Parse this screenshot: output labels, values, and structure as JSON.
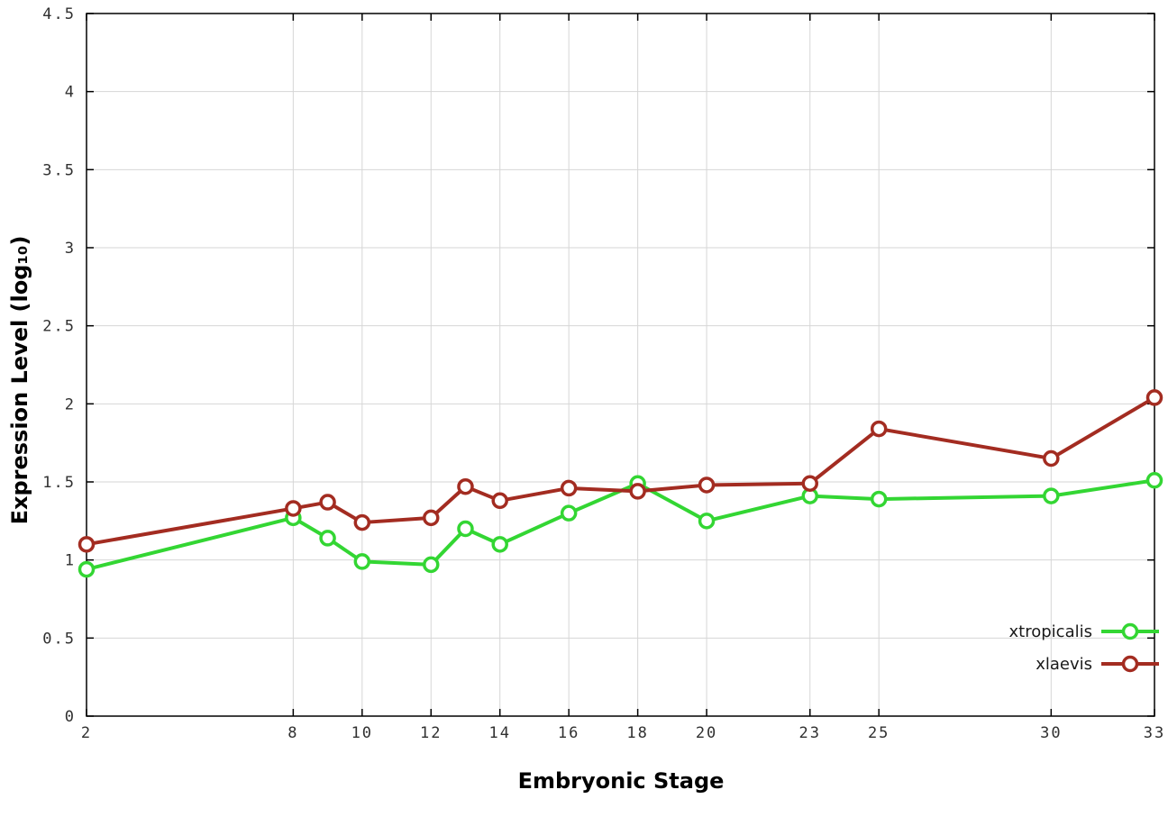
{
  "chart_data": {
    "type": "line",
    "title": "",
    "xlabel": "Embryonic Stage",
    "ylabel": "Expression Level (log₁₀)",
    "xlim": [
      2,
      33
    ],
    "ylim": [
      0,
      4.5
    ],
    "grid": true,
    "legend_position": "bottom-right-inside",
    "xticks": [
      2,
      8,
      10,
      12,
      14,
      16,
      18,
      20,
      23,
      25,
      30,
      33
    ],
    "xtick_labels": [
      "2",
      "8",
      "10",
      "12",
      "14",
      "16",
      "18",
      "20",
      "23",
      "25",
      "30",
      "33"
    ],
    "yticks": [
      0,
      0.5,
      1,
      1.5,
      2,
      2.5,
      3,
      3.5,
      4,
      4.5
    ],
    "ytick_labels": [
      "0",
      "0.5",
      "1",
      "1.5",
      "2",
      "2.5",
      "3",
      "3.5",
      "4",
      "4.5"
    ],
    "x": [
      2,
      8,
      9,
      10,
      12,
      13,
      14,
      16,
      18,
      20,
      23,
      25,
      30,
      33
    ],
    "series": [
      {
        "name": "xtropicalis",
        "color": "#33d633",
        "marker": "open-circle",
        "values": [
          0.94,
          1.27,
          1.14,
          0.99,
          0.97,
          1.2,
          1.1,
          1.3,
          1.49,
          1.25,
          1.41,
          1.39,
          1.41,
          1.51
        ]
      },
      {
        "name": "xlaevis",
        "color": "#a32c21",
        "marker": "open-circle",
        "values": [
          1.1,
          1.33,
          1.37,
          1.24,
          1.27,
          1.47,
          1.38,
          1.46,
          1.44,
          1.48,
          1.49,
          1.84,
          1.65,
          2.04
        ]
      }
    ]
  }
}
